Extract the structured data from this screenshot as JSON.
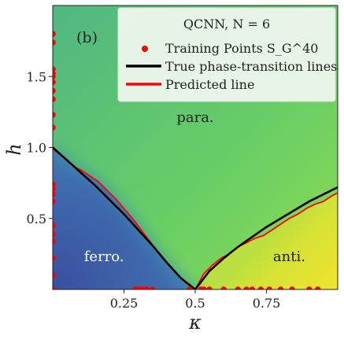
{
  "chart_data": {
    "type": "heatmap",
    "title": "",
    "panel_label": "(b)",
    "xlabel": "κ",
    "ylabel": "h",
    "xlim": [
      0.0,
      1.0
    ],
    "ylim": [
      0.0,
      2.0
    ],
    "x_ticks": [
      {
        "value": 0.25,
        "label": "0.25"
      },
      {
        "value": 0.5,
        "label": "0.5"
      },
      {
        "value": 0.75,
        "label": "0.75"
      }
    ],
    "y_ticks": [
      {
        "value": 0.5,
        "label": "0.5"
      },
      {
        "value": 1.0,
        "label": "1.0"
      },
      {
        "value": 1.5,
        "label": "1.5"
      }
    ],
    "region_labels": [
      {
        "text": "ferro.",
        "x": 0.18,
        "y": 0.2,
        "color": "#ffffff"
      },
      {
        "text": "para.",
        "x": 0.5,
        "y": 1.18,
        "color": "#222222"
      },
      {
        "text": "anti.",
        "x": 0.83,
        "y": 0.2,
        "color": "#222222"
      }
    ],
    "legend": {
      "title": "QCNN, N = 6",
      "position": "top-right",
      "entries": [
        {
          "label": "Training Points S_G^40",
          "marker": "dot",
          "color": "#ff0000"
        },
        {
          "label": "True phase-transition lines",
          "marker": "line",
          "color": "#000000"
        },
        {
          "label": "Predicted line",
          "marker": "line",
          "color": "#ff0000"
        }
      ]
    },
    "colors": {
      "ferro": "#3b5aa8",
      "para": "#6ed35e",
      "anti": "#e8e232",
      "true_line": "#000000",
      "predicted_line": "#ff0000",
      "training_points": "#ff0000"
    },
    "series": [
      {
        "name": "True phase-transition lines",
        "segments": [
          {
            "x": [
              0.0,
              0.05,
              0.1,
              0.15,
              0.2,
              0.25,
              0.3,
              0.35,
              0.4,
              0.45,
              0.5
            ],
            "y": [
              1.0,
              0.91,
              0.82,
              0.73,
              0.63,
              0.53,
              0.42,
              0.31,
              0.19,
              0.08,
              0.0
            ]
          },
          {
            "x": [
              0.5,
              0.55,
              0.6,
              0.65,
              0.7,
              0.75,
              0.8,
              0.85,
              0.9,
              0.95,
              1.0
            ],
            "y": [
              0.0,
              0.13,
              0.22,
              0.3,
              0.37,
              0.44,
              0.5,
              0.56,
              0.62,
              0.67,
              0.72
            ]
          }
        ]
      },
      {
        "name": "Predicted line",
        "segments": [
          {
            "x": [
              0.0,
              0.04,
              0.08,
              0.1,
              0.13,
              0.16,
              0.19,
              0.22,
              0.25,
              0.28,
              0.31,
              0.34,
              0.37,
              0.4,
              0.43,
              0.46,
              0.48,
              0.5
            ],
            "y": [
              0.99,
              0.93,
              0.86,
              0.84,
              0.8,
              0.76,
              0.7,
              0.64,
              0.57,
              0.5,
              0.42,
              0.34,
              0.26,
              0.19,
              0.12,
              0.06,
              0.03,
              0.0
            ]
          },
          {
            "x": [
              0.5,
              0.53,
              0.56,
              0.59,
              0.62,
              0.65,
              0.68,
              0.71,
              0.74,
              0.77,
              0.8,
              0.83,
              0.86,
              0.89,
              0.92,
              0.95,
              0.98,
              1.0
            ],
            "y": [
              0.0,
              0.11,
              0.17,
              0.22,
              0.25,
              0.3,
              0.33,
              0.36,
              0.38,
              0.42,
              0.46,
              0.5,
              0.53,
              0.57,
              0.6,
              0.62,
              0.66,
              0.68
            ]
          }
        ]
      },
      {
        "name": "Training Points S_G^40",
        "points": [
          {
            "x": 0.0,
            "y": 1.8
          },
          {
            "x": 0.0,
            "y": 1.74
          },
          {
            "x": 0.0,
            "y": 1.55
          },
          {
            "x": 0.0,
            "y": 1.52
          },
          {
            "x": 0.0,
            "y": 1.5
          },
          {
            "x": 0.0,
            "y": 1.46
          },
          {
            "x": 0.0,
            "y": 1.4
          },
          {
            "x": 0.0,
            "y": 1.34
          },
          {
            "x": 0.0,
            "y": 1.23
          },
          {
            "x": 0.0,
            "y": 1.14
          },
          {
            "x": 0.0,
            "y": 0.74
          },
          {
            "x": 0.0,
            "y": 0.71
          },
          {
            "x": 0.0,
            "y": 0.67
          },
          {
            "x": 0.0,
            "y": 0.62
          },
          {
            "x": 0.0,
            "y": 0.45
          },
          {
            "x": 0.0,
            "y": 0.39
          },
          {
            "x": 0.0,
            "y": 0.34
          },
          {
            "x": 0.0,
            "y": 0.22
          },
          {
            "x": 0.0,
            "y": 0.1
          },
          {
            "x": 0.0,
            "y": 0.0
          },
          {
            "x": 0.29,
            "y": 0.0
          },
          {
            "x": 0.3,
            "y": 0.0
          },
          {
            "x": 0.31,
            "y": 0.0
          },
          {
            "x": 0.32,
            "y": 0.0
          },
          {
            "x": 0.33,
            "y": 0.0
          },
          {
            "x": 0.35,
            "y": 0.0
          },
          {
            "x": 0.48,
            "y": 0.0
          },
          {
            "x": 0.53,
            "y": 0.0
          },
          {
            "x": 0.55,
            "y": 0.0
          },
          {
            "x": 0.6,
            "y": 0.0
          },
          {
            "x": 0.65,
            "y": 0.0
          },
          {
            "x": 0.68,
            "y": 0.0
          },
          {
            "x": 0.73,
            "y": 0.0
          },
          {
            "x": 0.76,
            "y": 0.0
          },
          {
            "x": 0.8,
            "y": 0.0
          },
          {
            "x": 0.84,
            "y": 0.0
          },
          {
            "x": 0.93,
            "y": 0.0
          },
          {
            "x": 0.9,
            "y": 0.0
          },
          {
            "x": 0.52,
            "y": 0.0
          },
          {
            "x": 0.7,
            "y": 0.0
          }
        ]
      }
    ]
  }
}
